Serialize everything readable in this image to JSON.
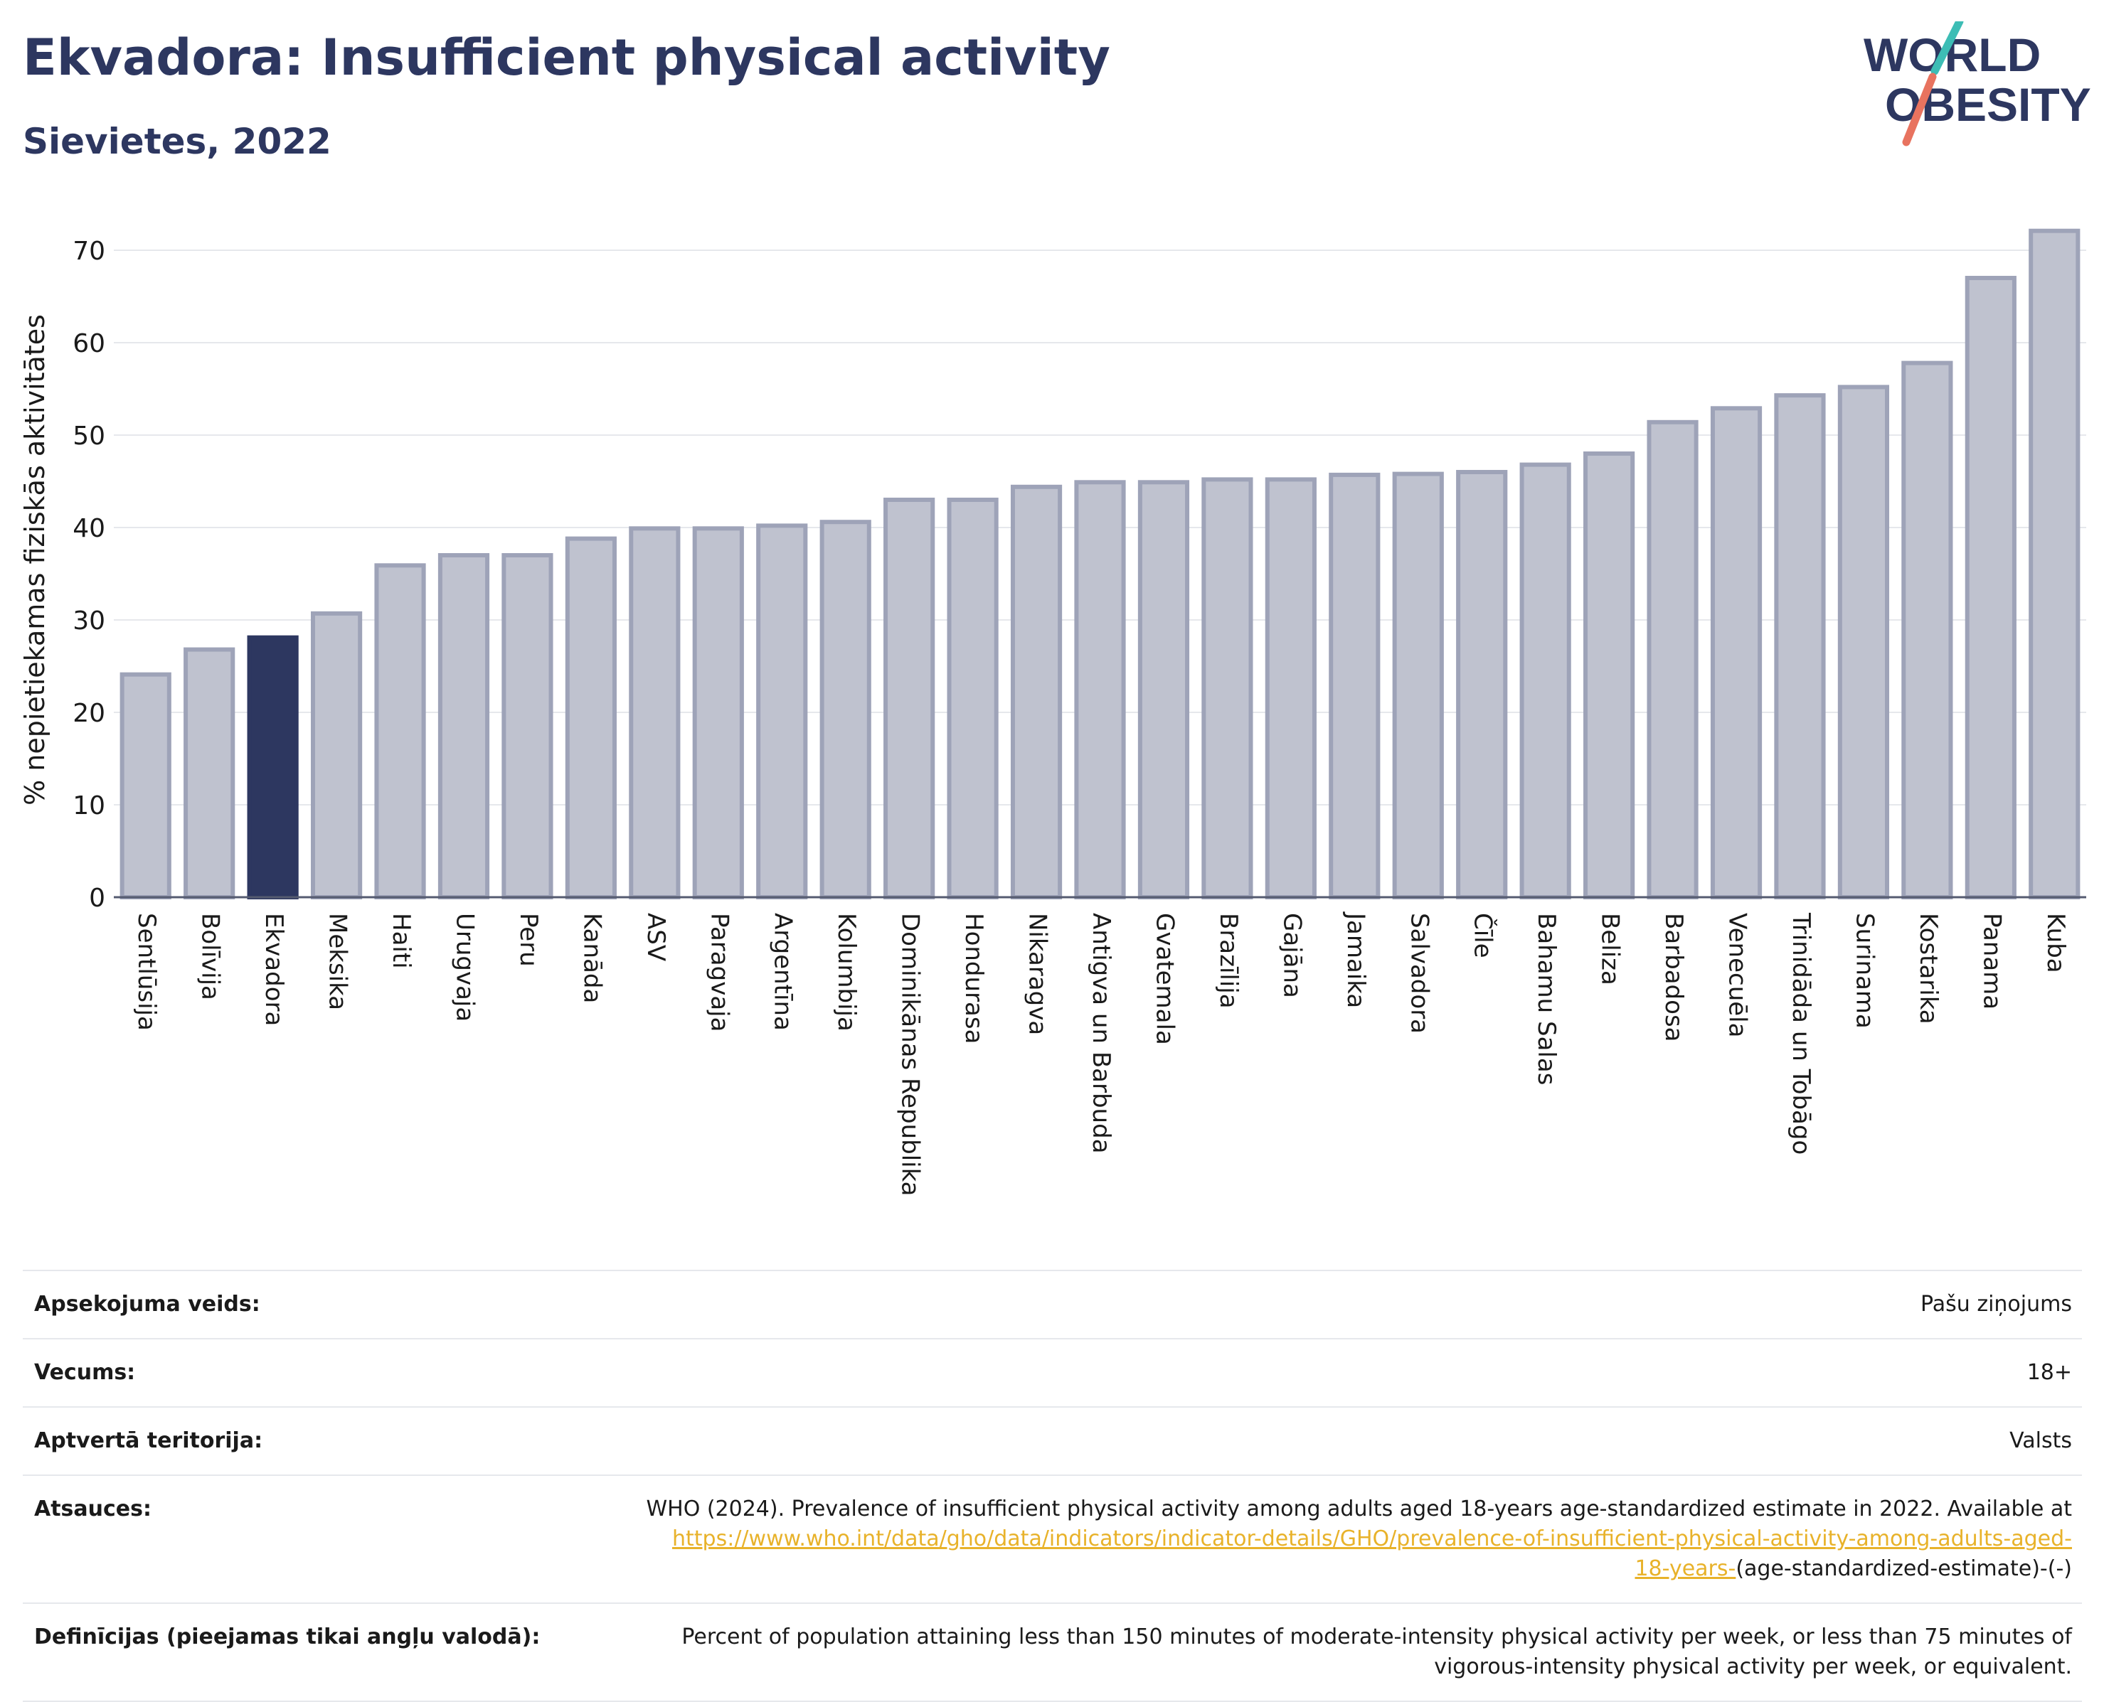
{
  "header": {
    "title": "Ekvadora: Insufficient physical activity",
    "subtitle": "Sievietes, 2022"
  },
  "logo": {
    "line1": "WORLD",
    "line2": "OBESITY"
  },
  "colors": {
    "highlight": "#2d3760",
    "bar_fill": "#bfc2cf",
    "bar_stroke": "#9ea3b8",
    "logo_teal": "#3dbdb5",
    "logo_coral": "#e8735f",
    "link": "#e8b22a"
  },
  "chart_data": {
    "type": "bar",
    "ylabel": "% nepietiekamas fiziskās aktivitātes",
    "ylim": [
      0,
      73
    ],
    "yticks": [
      0,
      10,
      20,
      30,
      40,
      50,
      60,
      70
    ],
    "grid": true,
    "highlight_category": "Ekvadora",
    "categories": [
      "Sentlūsija",
      "Bolīvija",
      "Ekvadora",
      "Meksika",
      "Haiti",
      "Urugvaja",
      "Peru",
      "Kanāda",
      "ASV",
      "Paragvaja",
      "Argentīna",
      "Kolumbija",
      "Dominikānas Republika",
      "Hondurasa",
      "Nikaragva",
      "Antigva un Barbuda",
      "Gvatemala",
      "Brazīlija",
      "Gajāna",
      "Jamaika",
      "Salvadora",
      "Čīle",
      "Bahamu Salas",
      "Beliza",
      "Barbadosa",
      "Venecuēla",
      "Trinidāda un Tobāgo",
      "Surinama",
      "Kostarika",
      "Panama",
      "Kuba"
    ],
    "values": [
      24.1,
      26.8,
      28.1,
      30.7,
      35.9,
      37.0,
      37.0,
      38.8,
      39.9,
      39.9,
      40.2,
      40.6,
      43.0,
      43.0,
      44.4,
      44.9,
      44.9,
      45.2,
      45.2,
      45.7,
      45.8,
      46.0,
      46.8,
      48.0,
      51.4,
      52.9,
      54.3,
      55.2,
      57.8,
      67.0,
      72.1
    ]
  },
  "meta": {
    "survey_label": "Apsekojuma veids:",
    "survey_value": "Pašu ziņojums",
    "age_label": "Vecums:",
    "age_value": "18+",
    "coverage_label": "Aptvertā teritorija:",
    "coverage_value": "Valsts",
    "references_label": "Atsauces:",
    "references_text": "WHO (2024). Prevalence of insufficient physical activity among adults aged 18-years age-standardized estimate in 2022. Available at",
    "references_link_1": "https://www.who.int/data/gho/data/indicators/indicator-details/GHO/prevalence-of-insufficient-physical-activity-among-adults-aged-",
    "references_link_2": "18-years-",
    "references_suffix": "(age-standardized-estimate)-(-)",
    "definitions_label": "Definīcijas (pieejamas tikai angļu valodā):",
    "definitions_line_1": "Percent of population attaining less than 150 minutes of moderate-intensity physical activity per week, or less than 75 minutes of",
    "definitions_line_2": "vigorous-intensity physical activity per week, or equivalent."
  }
}
